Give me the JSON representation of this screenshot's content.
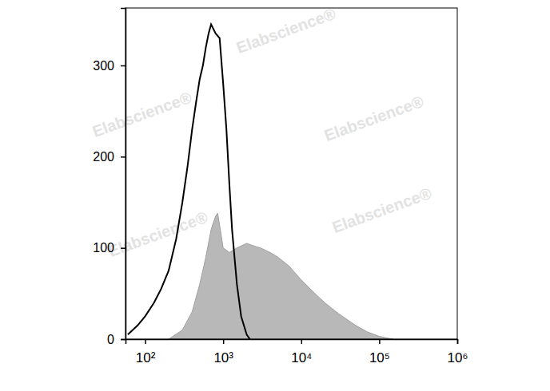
{
  "chart_data": {
    "type": "histogram",
    "log": "x",
    "grid": false,
    "xlim": [
      56,
      1000000
    ],
    "ylim": [
      0,
      363
    ],
    "xticks": [
      {
        "value": 100,
        "label": "10²"
      },
      {
        "value": 1000,
        "label": "10³"
      },
      {
        "value": 10000,
        "label": "10⁴"
      },
      {
        "value": 100000,
        "label": "10⁵"
      },
      {
        "value": 1000000,
        "label": "10⁶"
      }
    ],
    "yticks": [
      0,
      100,
      200,
      300
    ],
    "annotations": [
      "Elabscience®"
    ],
    "series": [
      {
        "type": "area",
        "color": "#b8b8b8",
        "x": [
          200,
          300,
          400,
          500,
          600,
          700,
          800,
          850,
          900,
          1000,
          1200,
          1500,
          2000,
          2500,
          3000,
          4000,
          5000,
          7000,
          10000,
          15000,
          20000,
          30000,
          50000,
          70000,
          100000,
          150000
        ],
        "values": [
          0,
          10,
          30,
          60,
          90,
          120,
          135,
          138,
          125,
          100,
          95,
          100,
          105,
          102,
          100,
          95,
          90,
          80,
          65,
          50,
          40,
          28,
          15,
          8,
          3,
          0
        ]
      },
      {
        "type": "line",
        "color": "#000000",
        "x": [
          60,
          80,
          100,
          130,
          160,
          200,
          250,
          300,
          350,
          400,
          450,
          500,
          550,
          600,
          650,
          700,
          800,
          900,
          1000,
          1100,
          1200,
          1300,
          1500,
          1700,
          2000,
          2200
        ],
        "values": [
          5,
          15,
          25,
          40,
          55,
          75,
          110,
          150,
          190,
          230,
          260,
          285,
          300,
          320,
          335,
          345,
          335,
          330,
          280,
          230,
          170,
          120,
          60,
          25,
          5,
          0
        ]
      }
    ]
  }
}
